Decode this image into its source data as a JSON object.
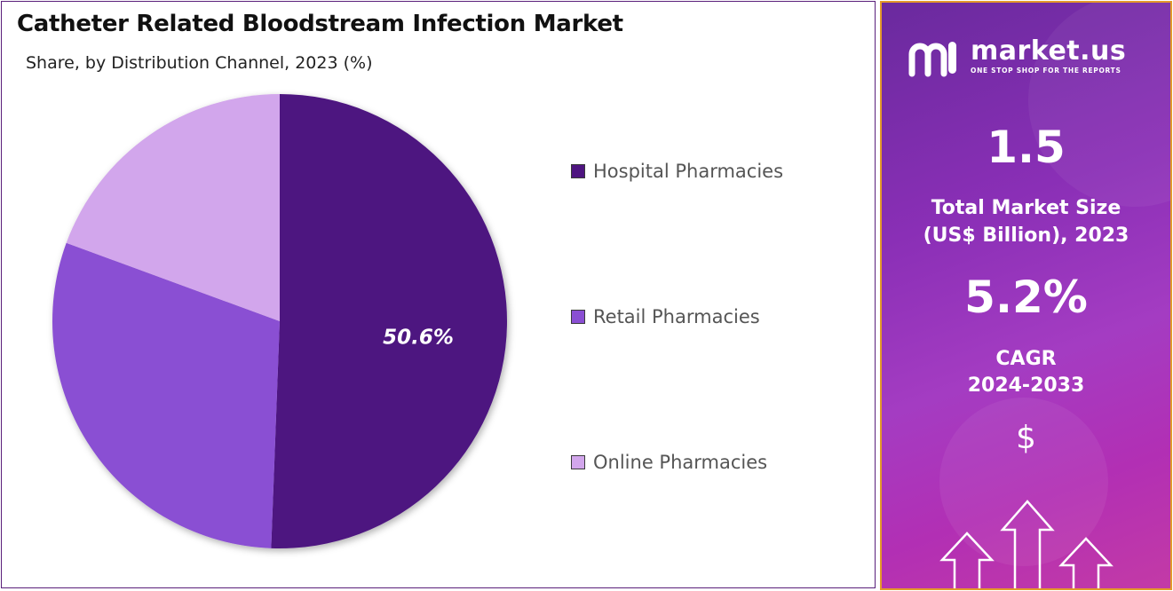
{
  "chart_title": "Catheter Related Bloodstream Infection Market",
  "chart_subtitle": "Share, by Distribution Channel, 2023 (%)",
  "chart_data": {
    "type": "pie",
    "title": "Catheter Related Bloodstream Infection Market",
    "subtitle": "Share, by Distribution Channel, 2023 (%)",
    "categories": [
      "Hospital Pharmacies",
      "Retail Pharmacies",
      "Online Pharmacies"
    ],
    "values": [
      50.6,
      30.0,
      19.4
    ],
    "data_labels": [
      "50.6%",
      "",
      ""
    ],
    "colors": [
      "#4e1580",
      "#8a4fd3",
      "#d2a6ec"
    ],
    "legend_placement": "right"
  },
  "sidebar": {
    "brand_name": "market.us",
    "brand_tagline": "ONE STOP SHOP FOR THE REPORTS",
    "market_size_value": "1.5",
    "market_size_label_line1": "Total Market Size",
    "market_size_label_line2": "(US$ Billion), 2023",
    "cagr_value": "5.2%",
    "cagr_label_line1": "CAGR",
    "cagr_label_line2": "2024-2033",
    "currency_symbol": "$",
    "icons": [
      "market-us-logo-icon",
      "dollar-icon",
      "up-arrow-icon"
    ]
  }
}
